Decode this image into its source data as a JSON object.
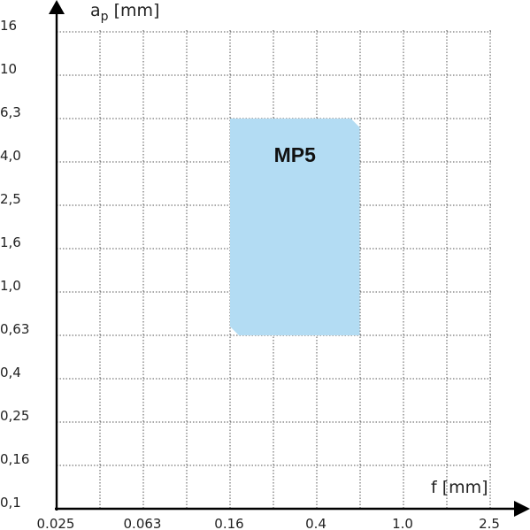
{
  "chart_data": {
    "type": "area",
    "title": "",
    "xlabel": "f [mm]",
    "ylabel": {
      "main": "a",
      "sub": "p",
      "unit": " [mm]"
    },
    "x_tick_labels": [
      "0.025",
      "0.063",
      "0.16",
      "0.4",
      "1.0",
      "2.5"
    ],
    "y_tick_labels": [
      "0,1",
      "0,16",
      "0,25",
      "0,4",
      "0,63",
      "1,0",
      "1,6",
      "2,5",
      "4,0",
      "6,3",
      "10",
      "16"
    ],
    "x_scale": "log",
    "y_scale": "log",
    "grid": true,
    "regions": [
      {
        "name": "MP5",
        "label": "MP5",
        "color": "#b3dcf3",
        "f_range": [
          0.16,
          0.63
        ],
        "ap_range": [
          0.63,
          6.3
        ]
      }
    ]
  }
}
